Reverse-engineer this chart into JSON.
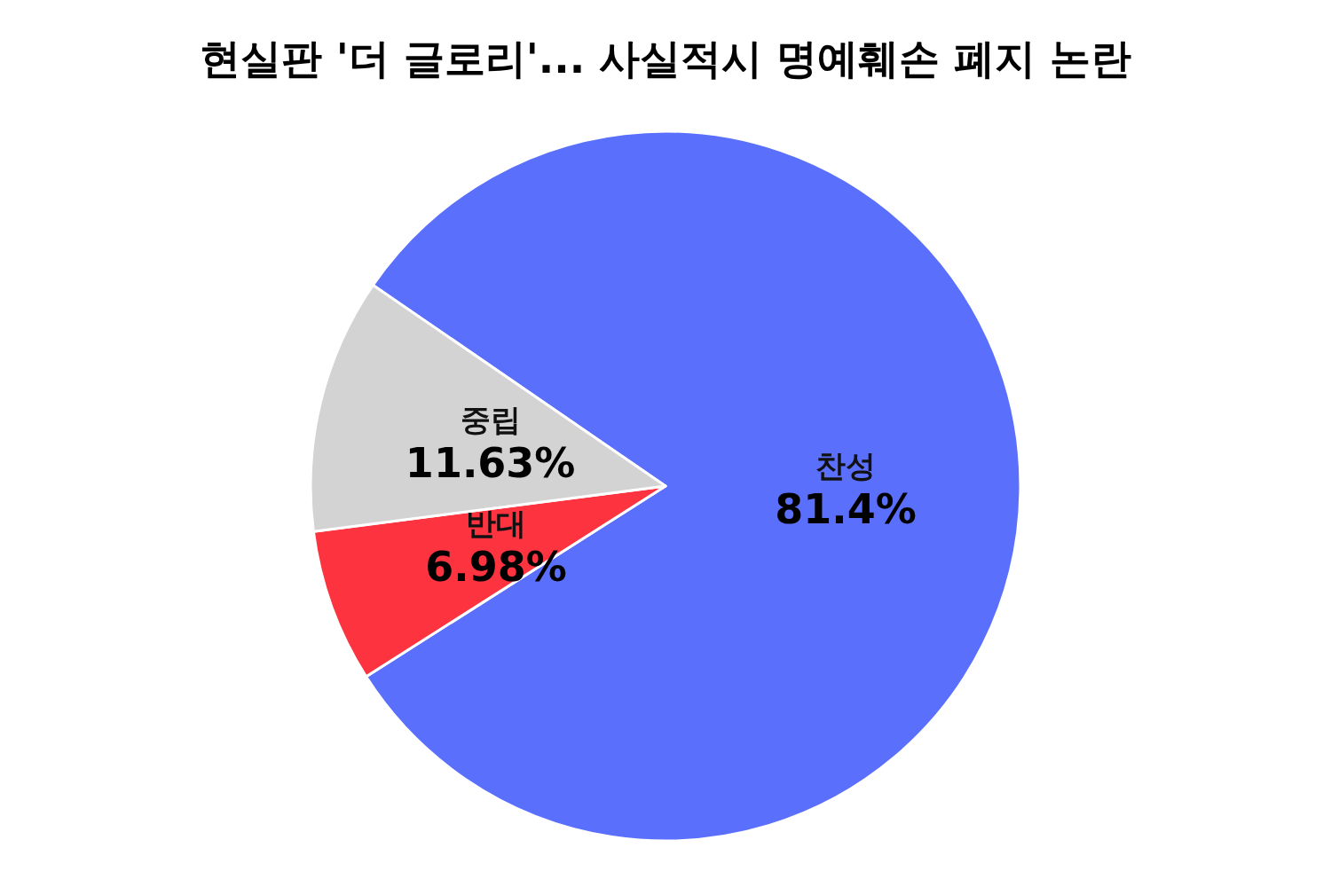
{
  "chart_data": {
    "type": "pie",
    "title": "현실판 '더 글로리'... 사실적시 명예훼손 폐지 논란",
    "categories": [
      "찬성",
      "반대",
      "중립"
    ],
    "values": [
      81.4,
      6.98,
      11.63
    ],
    "value_labels": [
      "81.4%",
      "6.98%",
      "11.63%"
    ],
    "colors": [
      "#5b6ffd",
      "#fe3340",
      "#d3d3d3"
    ],
    "legend": false
  }
}
